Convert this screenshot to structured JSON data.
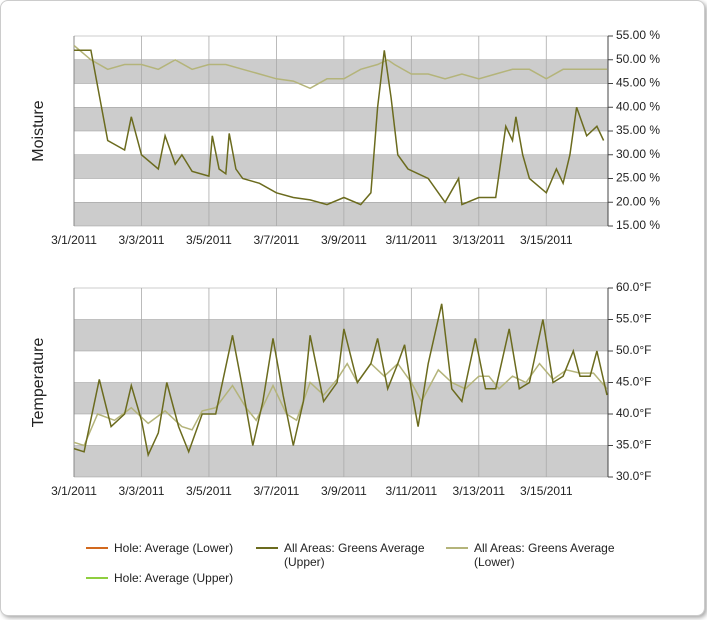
{
  "chart_data": [
    {
      "type": "line",
      "y_label": "Moisture",
      "xlim": [
        1,
        16.83
      ],
      "ylim": [
        15,
        55
      ],
      "xticks": [
        {
          "value": 1,
          "label": "3/1/2011"
        },
        {
          "value": 3,
          "label": "3/3/2011"
        },
        {
          "value": 5,
          "label": "3/5/2011"
        },
        {
          "value": 7,
          "label": "3/7/2011"
        },
        {
          "value": 9,
          "label": "3/9/2011"
        },
        {
          "value": 11,
          "label": "3/11/2011"
        },
        {
          "value": 13,
          "label": "3/13/2011"
        },
        {
          "value": 15,
          "label": "3/15/2011"
        }
      ],
      "yticks": [
        {
          "value": 15,
          "label": "15.00 %"
        },
        {
          "value": 20,
          "label": "20.00 %"
        },
        {
          "value": 25,
          "label": "25.00 %"
        },
        {
          "value": 30,
          "label": "30.00 %"
        },
        {
          "value": 35,
          "label": "35.00 %"
        },
        {
          "value": 40,
          "label": "40.00 %"
        },
        {
          "value": 45,
          "label": "45.00 %"
        },
        {
          "value": 50,
          "label": "50.00 %"
        },
        {
          "value": 55,
          "label": "55.00 %"
        }
      ],
      "grid": true,
      "bands": true,
      "band_color": "#cccccc",
      "series": [
        {
          "color": "#b4b47a",
          "x": [
            1,
            1.5,
            2,
            2.5,
            3,
            3.5,
            4,
            4.5,
            5,
            5.5,
            6,
            6.5,
            7,
            7.5,
            8,
            8.5,
            9,
            9.5,
            10,
            10.3,
            10.5,
            11,
            11.5,
            12,
            12.5,
            13,
            13.5,
            14,
            14.5,
            15,
            15.5,
            16,
            16.8
          ],
          "values": [
            53,
            50,
            48,
            49,
            49,
            48,
            50,
            48,
            49,
            49,
            48,
            47,
            46,
            45.5,
            44,
            46,
            46,
            48,
            49,
            50,
            49,
            47,
            47,
            46,
            47,
            46,
            47,
            48,
            48,
            46,
            48,
            48,
            48
          ]
        },
        {
          "color": "#6b6b1e",
          "x": [
            1,
            1.5,
            2,
            2.5,
            2.7,
            3,
            3.5,
            3.7,
            4,
            4.2,
            4.5,
            5,
            5.1,
            5.3,
            5.5,
            5.6,
            5.8,
            6,
            6.5,
            7,
            7.5,
            8,
            8.5,
            9,
            9.5,
            9.8,
            10,
            10.2,
            10.4,
            10.6,
            10.9,
            11.5,
            12,
            12.4,
            12.5,
            13,
            13.5,
            13.8,
            14,
            14.1,
            14.3,
            14.5,
            15,
            15.3,
            15.5,
            15.7,
            15.9,
            16.2,
            16.5,
            16.7
          ],
          "values": [
            52,
            52,
            33,
            31,
            38,
            30,
            27,
            34,
            28,
            30,
            26.5,
            25.5,
            34,
            27,
            26,
            34.5,
            27,
            25,
            24,
            22,
            21,
            20.5,
            19.5,
            21,
            19.5,
            22,
            40,
            52,
            42,
            30,
            27,
            25,
            20,
            25,
            19.5,
            21,
            21,
            36,
            33,
            38,
            30,
            25,
            22,
            27,
            24,
            30,
            40,
            34,
            36,
            33
          ]
        }
      ]
    },
    {
      "type": "line",
      "y_label": "Temperature",
      "xlim": [
        1,
        16.83
      ],
      "ylim": [
        30,
        60
      ],
      "xticks": [
        {
          "value": 1,
          "label": "3/1/2011"
        },
        {
          "value": 3,
          "label": "3/3/2011"
        },
        {
          "value": 5,
          "label": "3/5/2011"
        },
        {
          "value": 7,
          "label": "3/7/2011"
        },
        {
          "value": 9,
          "label": "3/9/2011"
        },
        {
          "value": 11,
          "label": "3/11/2011"
        },
        {
          "value": 13,
          "label": "3/13/2011"
        },
        {
          "value": 15,
          "label": "3/15/2011"
        }
      ],
      "yticks": [
        {
          "value": 30,
          "label": "30.0°F"
        },
        {
          "value": 35,
          "label": "35.0°F"
        },
        {
          "value": 40,
          "label": "40.0°F"
        },
        {
          "value": 45,
          "label": "45.0°F"
        },
        {
          "value": 50,
          "label": "50.0°F"
        },
        {
          "value": 55,
          "label": "55.0°F"
        },
        {
          "value": 60,
          "label": "60.0°F"
        }
      ],
      "grid": true,
      "bands": true,
      "band_color": "#cccccc",
      "series": [
        {
          "color": "#b4b47a",
          "x": [
            1,
            1.3,
            1.7,
            2.2,
            2.7,
            3.2,
            3.7,
            4.2,
            4.5,
            4.8,
            5.2,
            5.7,
            6.1,
            6.4,
            6.9,
            7.3,
            7.6,
            8,
            8.4,
            8.8,
            9.1,
            9.4,
            9.8,
            10.2,
            10.6,
            11,
            11.3,
            11.8,
            12.2,
            12.6,
            13,
            13.3,
            13.6,
            14,
            14.4,
            14.8,
            15.2,
            15.6,
            16,
            16.4,
            16.8
          ],
          "values": [
            35.5,
            35,
            40,
            39,
            41,
            38.5,
            40.5,
            38,
            37.5,
            40.5,
            41,
            44.5,
            41,
            39,
            44.5,
            40,
            39,
            45,
            43,
            45.5,
            48,
            45,
            48,
            46,
            48,
            45,
            42,
            47,
            45,
            44,
            46,
            46,
            44,
            46,
            45,
            48,
            45.5,
            47,
            46.5,
            46.5,
            44
          ]
        },
        {
          "color": "#6b6b1e",
          "x": [
            1,
            1.3,
            1.75,
            2.1,
            2.5,
            2.7,
            3,
            3.2,
            3.5,
            3.75,
            4.1,
            4.4,
            4.8,
            5.2,
            5.7,
            6,
            6.3,
            6.6,
            6.9,
            7.2,
            7.5,
            7.8,
            8,
            8.4,
            8.8,
            9,
            9.4,
            9.8,
            10,
            10.3,
            10.6,
            10.8,
            11,
            11.2,
            11.5,
            11.9,
            12.2,
            12.5,
            12.9,
            13.2,
            13.5,
            13.9,
            14.2,
            14.5,
            14.9,
            15.2,
            15.5,
            15.8,
            16,
            16.3,
            16.5,
            16.8
          ],
          "values": [
            34.5,
            34,
            45.5,
            38,
            40,
            44.5,
            39,
            33.5,
            37,
            45,
            38,
            34,
            40,
            40,
            52.5,
            44,
            35,
            42,
            52,
            43,
            35,
            42,
            52.5,
            42,
            45,
            53.5,
            45,
            48,
            52,
            44,
            48,
            51,
            44,
            38,
            48,
            57.5,
            44,
            42,
            52,
            44,
            44,
            53.5,
            44,
            45,
            55,
            45,
            46,
            50,
            46,
            46,
            50,
            43
          ]
        }
      ]
    }
  ],
  "legend": [
    {
      "name": "Hole: Average (Lower)",
      "color": "#d2691e"
    },
    {
      "name": "All Areas: Greens Average (Upper)",
      "color": "#6b6b1e"
    },
    {
      "name": "All Areas: Greens Average (Lower)",
      "color": "#b4b47a"
    },
    {
      "name": "Hole: Average (Upper)",
      "color": "#8fce3f"
    }
  ]
}
